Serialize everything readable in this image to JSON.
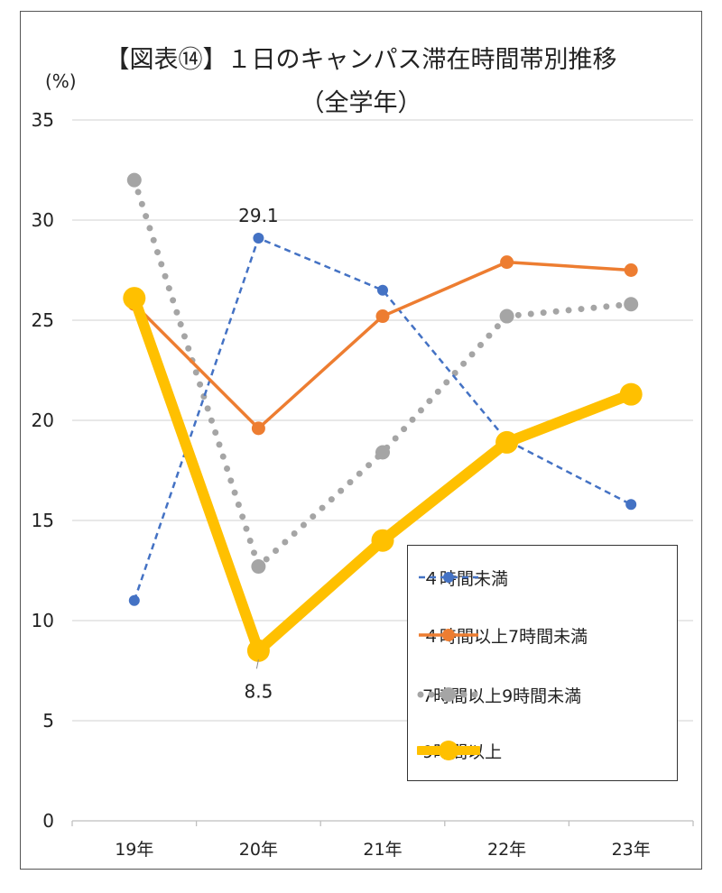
{
  "chart_data": {
    "type": "line",
    "title": "【図表⑭】１日のキャンパス滞在時間帯別推移",
    "subtitle": "（全学年）",
    "ylabel": "(%)",
    "xlabel": "",
    "ylim": [
      0,
      35
    ],
    "yticks": [
      0,
      5,
      10,
      15,
      20,
      25,
      30,
      35
    ],
    "grid": true,
    "legend_position": "bottom-right",
    "categories": [
      "19年",
      "20年",
      "21年",
      "22年",
      "23年"
    ],
    "series": [
      {
        "name": "４時間未満",
        "values": [
          11.0,
          29.1,
          26.5,
          19.0,
          15.8
        ],
        "color": "#4472C4",
        "style": "dashed"
      },
      {
        "name": "４時間以上7時間未満",
        "values": [
          25.8,
          19.6,
          25.2,
          27.9,
          27.5
        ],
        "color": "#ED7D31",
        "style": "solid"
      },
      {
        "name": "7時間以上9時間未満",
        "values": [
          32.0,
          12.7,
          18.4,
          25.2,
          25.8
        ],
        "color": "#A5A5A5",
        "style": "dotted"
      },
      {
        "name": "9時間以上",
        "values": [
          26.1,
          8.5,
          14.0,
          18.9,
          21.3
        ],
        "color": "#FFC000",
        "style": "thick"
      }
    ],
    "data_labels": [
      {
        "series": 0,
        "index": 1,
        "text": "29.1",
        "position": "above"
      },
      {
        "series": 3,
        "index": 1,
        "text": "8.5",
        "position": "below"
      }
    ]
  }
}
